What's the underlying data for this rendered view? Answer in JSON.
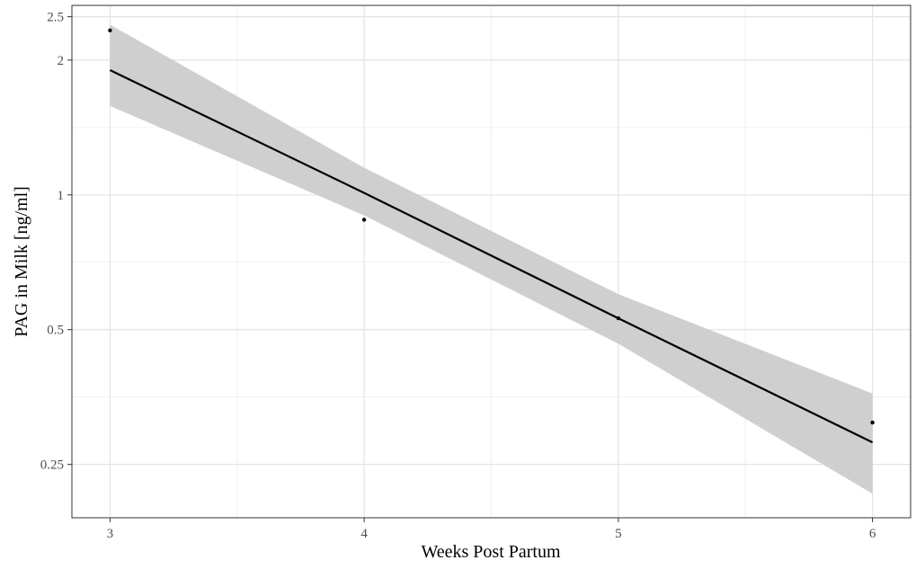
{
  "chart_data": {
    "type": "line",
    "title": "",
    "xlabel": "Weeks Post Partum",
    "ylabel": "PAG in Milk [ng/ml]",
    "x_scale": "linear",
    "y_scale": "log",
    "xlim": [
      2.85,
      6.15
    ],
    "ylim": [
      0.19,
      2.65
    ],
    "x_ticks": [
      3,
      4,
      5,
      6
    ],
    "x_tick_labels": [
      "3",
      "4",
      "5",
      "6"
    ],
    "x_minor_ticks": [
      3.5,
      4.5,
      5.5
    ],
    "y_ticks": [
      0.25,
      0.5,
      1,
      2,
      2.5
    ],
    "y_tick_labels": [
      "0.25",
      "0.5",
      "1",
      "2",
      "2.5"
    ],
    "y_minor_ticks": [
      0.354,
      0.707,
      1.414
    ],
    "grid": true,
    "series": [
      {
        "type": "scatter",
        "x": [
          3,
          4,
          5,
          6
        ],
        "y": [
          2.33,
          0.88,
          0.53,
          0.31
        ],
        "color": "#000000"
      },
      {
        "type": "line",
        "x": [
          3,
          4,
          5,
          6
        ],
        "y": [
          1.9,
          1.01,
          0.53,
          0.28
        ],
        "color": "#000000"
      },
      {
        "type": "band",
        "x": [
          3,
          4,
          5,
          6
        ],
        "lower": [
          1.58,
          0.9,
          0.465,
          0.215
        ],
        "upper": [
          2.4,
          1.15,
          0.6,
          0.36
        ],
        "color": "#cccccc"
      }
    ]
  }
}
